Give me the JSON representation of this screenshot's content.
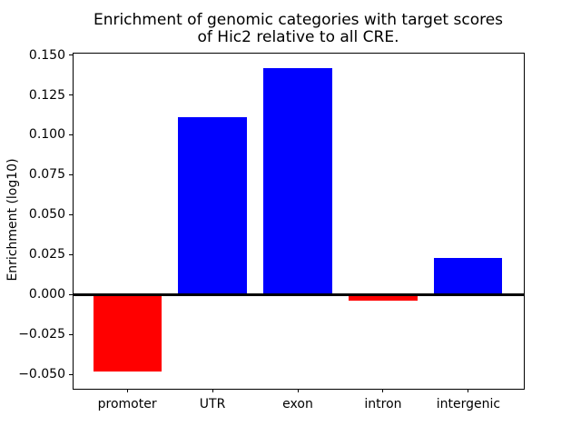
{
  "chart_data": {
    "type": "bar",
    "title": "Enrichment of genomic categories with target scores\nof Hic2 relative to all CRE.",
    "title_line1": "Enrichment of genomic categories with target scores",
    "title_line2": "of Hic2 relative to all CRE.",
    "xlabel": "",
    "ylabel": "Enrichment (log10)",
    "categories": [
      "promoter",
      "UTR",
      "exon",
      "intron",
      "intergenic"
    ],
    "values": [
      -0.048,
      0.111,
      0.142,
      -0.004,
      0.023
    ],
    "bar_colors": [
      "#ff0000",
      "#0000ff",
      "#0000ff",
      "#ff0000",
      "#0000ff"
    ],
    "positive_color": "#0000ff",
    "negative_color": "#ff0000",
    "yticks": [
      0.15,
      0.125,
      0.1,
      0.075,
      0.05,
      0.025,
      0.0,
      -0.025,
      -0.05
    ],
    "ytick_labels": [
      "0.150",
      "0.125",
      "0.100",
      "0.075",
      "0.050",
      "0.025",
      "0.000",
      "−0.025",
      "−0.050"
    ],
    "ylim": [
      -0.0585,
      0.1515
    ],
    "grid": false,
    "legend": false,
    "zero_line": true,
    "zero_line_color": "#000000",
    "background_color": "#ffffff",
    "spine_color": "#000000"
  }
}
